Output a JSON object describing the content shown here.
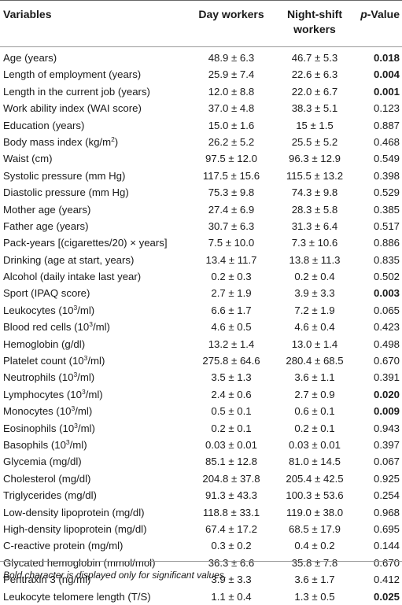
{
  "header": {
    "variables": "Variables",
    "day": "Day workers",
    "night_line1": "Night-shift",
    "night_line2": "workers",
    "p_italic": "p",
    "p_rest": "-Value"
  },
  "rows": [
    {
      "pre": "Age (years)",
      "sup": "",
      "post": "",
      "day": "48.9 ± 6.3",
      "night": "46.7 ± 5.3",
      "p": "0.018",
      "bold": true
    },
    {
      "pre": "Length of employment (years)",
      "sup": "",
      "post": "",
      "day": "25.9 ± 7.4",
      "night": "22.6 ± 6.3",
      "p": "0.004",
      "bold": true
    },
    {
      "pre": "Length in the current job (years)",
      "sup": "",
      "post": "",
      "day": "12.0 ± 8.8",
      "night": "22.0 ± 6.7",
      "p": "0.001",
      "bold": true
    },
    {
      "pre": "Work ability index (WAI score)",
      "sup": "",
      "post": "",
      "day": "37.0 ± 4.8",
      "night": "38.3 ± 5.1",
      "p": "0.123",
      "bold": false
    },
    {
      "pre": "Education (years)",
      "sup": "",
      "post": "",
      "day": "15.0 ± 1.6",
      "night": "15 ± 1.5",
      "p": "0.887",
      "bold": false
    },
    {
      "pre": "Body mass index (kg/m",
      "sup": "2",
      "post": ")",
      "day": "26.2 ± 5.2",
      "night": "25.5 ± 5.2",
      "p": "0.468",
      "bold": false
    },
    {
      "pre": "Waist (cm)",
      "sup": "",
      "post": "",
      "day": "97.5 ± 12.0",
      "night": "96.3 ± 12.9",
      "p": "0.549",
      "bold": false
    },
    {
      "pre": "Systolic pressure (mm Hg)",
      "sup": "",
      "post": "",
      "day": "117.5 ± 15.6",
      "night": "115.5 ± 13.2",
      "p": "0.398",
      "bold": false
    },
    {
      "pre": "Diastolic pressure (mm Hg)",
      "sup": "",
      "post": "",
      "day": "75.3 ± 9.8",
      "night": "74.3 ± 9.8",
      "p": "0.529",
      "bold": false
    },
    {
      "pre": "Mother age (years)",
      "sup": "",
      "post": "",
      "day": "27.4 ± 6.9",
      "night": "28.3 ± 5.8",
      "p": "0.385",
      "bold": false
    },
    {
      "pre": "Father age (years)",
      "sup": "",
      "post": "",
      "day": "30.7 ± 6.3",
      "night": "31.3 ± 6.4",
      "p": "0.517",
      "bold": false
    },
    {
      "pre": "Pack-years [(cigarettes/20) × years]",
      "sup": "",
      "post": "",
      "day": "7.5 ± 10.0",
      "night": "7.3 ± 10.6",
      "p": "0.886",
      "bold": false
    },
    {
      "pre": "Drinking (age at start, years)",
      "sup": "",
      "post": "",
      "day": "13.4 ± 11.7",
      "night": "13.8 ± 11.3",
      "p": "0.835",
      "bold": false
    },
    {
      "pre": "Alcohol (daily intake last year)",
      "sup": "",
      "post": "",
      "day": "0.2 ± 0.3",
      "night": "0.2 ± 0.4",
      "p": "0.502",
      "bold": false
    },
    {
      "pre": "Sport (IPAQ score)",
      "sup": "",
      "post": "",
      "day": "2.7 ± 1.9",
      "night": "3.9 ± 3.3",
      "p": "0.003",
      "bold": true
    },
    {
      "pre": "Leukocytes (10",
      "sup": "3",
      "post": "/ml)",
      "day": "6.6 ± 1.7",
      "night": "7.2 ± 1.9",
      "p": "0.065",
      "bold": false
    },
    {
      "pre": "Blood red cells (10",
      "sup": "3",
      "post": "/ml)",
      "day": "4.6 ± 0.5",
      "night": "4.6 ± 0.4",
      "p": "0.423",
      "bold": false
    },
    {
      "pre": "Hemoglobin (g/dl)",
      "sup": "",
      "post": "",
      "day": "13.2 ± 1.4",
      "night": "13.0 ± 1.4",
      "p": "0.498",
      "bold": false
    },
    {
      "pre": "Platelet count (10",
      "sup": "3",
      "post": "/ml)",
      "day": "275.8 ± 64.6",
      "night": "280.4 ± 68.5",
      "p": "0.670",
      "bold": false
    },
    {
      "pre": "Neutrophils (10",
      "sup": "3",
      "post": "/ml)",
      "day": "3.5 ± 1.3",
      "night": "3.6 ± 1.1",
      "p": "0.391",
      "bold": false
    },
    {
      "pre": "Lymphocytes (10",
      "sup": "3",
      "post": "/ml)",
      "day": "2.4 ± 0.6",
      "night": "2.7 ± 0.9",
      "p": "0.020",
      "bold": true
    },
    {
      "pre": "Monocytes (10",
      "sup": "3",
      "post": "/ml)",
      "day": "0.5 ± 0.1",
      "night": "0.6 ± 0.1",
      "p": "0.009",
      "bold": true
    },
    {
      "pre": "Eosinophils (10",
      "sup": "3",
      "post": "/ml)",
      "day": "0.2 ± 0.1",
      "night": "0.2 ± 0.1",
      "p": "0.943",
      "bold": false
    },
    {
      "pre": "Basophils (10",
      "sup": "3",
      "post": "/ml)",
      "day": "0.03 ± 0.01",
      "night": "0.03 ± 0.01",
      "p": "0.397",
      "bold": false
    },
    {
      "pre": "Glycemia (mg/dl)",
      "sup": "",
      "post": "",
      "day": "85.1 ± 12.8",
      "night": "81.0 ± 14.5",
      "p": "0.067",
      "bold": false
    },
    {
      "pre": "Cholesterol (mg/dl)",
      "sup": "",
      "post": "",
      "day": "204.8 ± 37.8",
      "night": "205.4 ± 42.5",
      "p": "0.925",
      "bold": false
    },
    {
      "pre": "Triglycerides (mg/dl)",
      "sup": "",
      "post": "",
      "day": "91.3 ± 43.3",
      "night": "100.3 ± 53.6",
      "p": "0.254",
      "bold": false
    },
    {
      "pre": "Low-density lipoprotein (mg/dl)",
      "sup": "",
      "post": "",
      "day": "118.8 ± 33.1",
      "night": "119.0 ± 38.0",
      "p": "0.968",
      "bold": false
    },
    {
      "pre": "High-density lipoprotein (mg/dl)",
      "sup": "",
      "post": "",
      "day": "67.4 ± 17.2",
      "night": "68.5 ± 17.9",
      "p": "0.695",
      "bold": false
    },
    {
      "pre": "C-reactive protein (mg/ml)",
      "sup": "",
      "post": "",
      "day": "0.3 ± 0.2",
      "night": "0.4 ± 0.2",
      "p": "0.144",
      "bold": false
    },
    {
      "pre": "Glycated hemoglobin (mmol/mol)",
      "sup": "",
      "post": "",
      "day": "36.3 ± 6.6",
      "night": "35.8 ± 7.8",
      "p": "0.670",
      "bold": false
    },
    {
      "pre": "Pentraxin 3 (ng/ml)",
      "sup": "",
      "post": "",
      "day": "3.9 ± 3.3",
      "night": "3.6 ± 1.7",
      "p": "0.412",
      "bold": false
    },
    {
      "pre": "Leukocyte telomere length (T/S)",
      "sup": "",
      "post": "",
      "day": "1.1 ± 0.4",
      "night": "1.3 ± 0.5",
      "p": "0.025",
      "bold": true
    }
  ],
  "footnote": "Bold character is displayed only for significant values."
}
